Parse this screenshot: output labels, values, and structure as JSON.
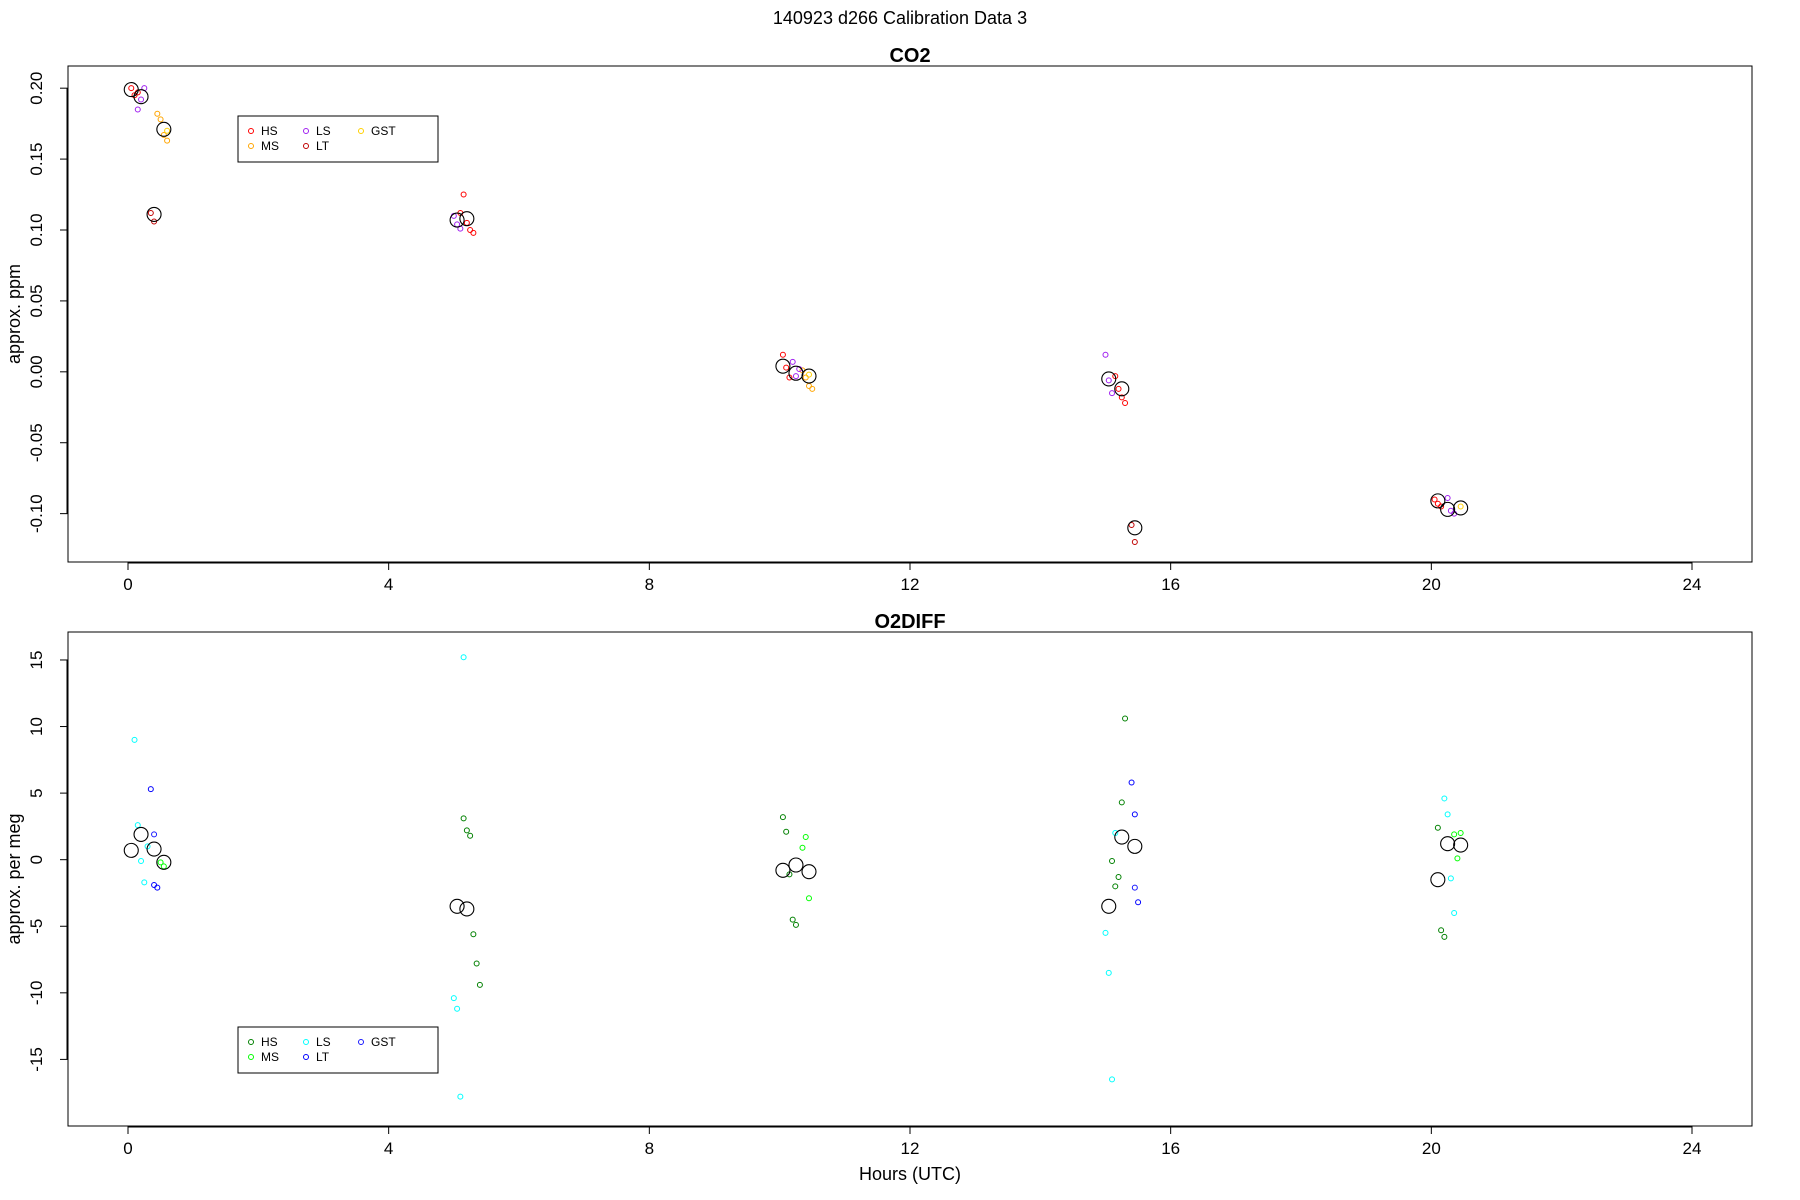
{
  "header": {
    "title": "140923   d266   Calibration Data 3"
  },
  "chart_data": [
    {
      "type": "scatter",
      "title": "CO2",
      "ylabel": "approx. ppm",
      "xlabel": "",
      "xlim": [
        0,
        24
      ],
      "ylim": [
        -0.12,
        0.21
      ],
      "xticks": [
        0,
        4,
        8,
        12,
        16,
        20,
        24
      ],
      "yticks": [
        -0.1,
        -0.05,
        0.0,
        0.05,
        0.1,
        0.15,
        0.2
      ],
      "ytick_labels": [
        "-0.10",
        "-0.05",
        "0.00",
        "0.05",
        "0.10",
        "0.15",
        "0.20"
      ],
      "legend": {
        "placement": "top-left",
        "entries": [
          "HS",
          "MS",
          "LS",
          "LT",
          "GST"
        ]
      },
      "series": [
        {
          "name": "HS",
          "color": "#ff0000",
          "x": [
            0.05,
            0.1,
            0.15,
            5.15,
            5.2,
            5.25,
            5.3,
            5.1,
            10.05,
            10.1,
            10.15,
            15.15,
            15.2,
            15.25,
            15.3,
            20.05,
            20.1,
            20.15
          ],
          "y": [
            0.2,
            0.195,
            0.197,
            0.125,
            0.105,
            0.1,
            0.098,
            0.112,
            0.012,
            0.003,
            -0.004,
            -0.003,
            -0.012,
            -0.018,
            -0.022,
            -0.09,
            -0.093,
            -0.095
          ]
        },
        {
          "name": "MS",
          "color": "#ffa500",
          "x": [
            0.45,
            0.5,
            0.55,
            0.6,
            10.35,
            10.4,
            10.45,
            10.5
          ],
          "y": [
            0.182,
            0.178,
            0.167,
            0.163,
            0.001,
            -0.004,
            -0.01,
            -0.012
          ]
        },
        {
          "name": "LS",
          "color": "#a020f0",
          "x": [
            0.15,
            0.2,
            0.25,
            5.0,
            5.05,
            5.1,
            10.2,
            10.25,
            10.3,
            15.0,
            15.05,
            15.1,
            20.25,
            20.3,
            20.35
          ],
          "y": [
            0.185,
            0.192,
            0.2,
            0.11,
            0.104,
            0.101,
            0.007,
            -0.003,
            0.002,
            0.012,
            -0.006,
            -0.015,
            -0.089,
            -0.098,
            -0.1
          ]
        },
        {
          "name": "LT",
          "color": "#c00000",
          "x": [
            0.35,
            0.4,
            15.4,
            15.45
          ],
          "y": [
            0.112,
            0.106,
            -0.108,
            -0.12
          ]
        },
        {
          "name": "GST",
          "color": "#ffd000",
          "x": [
            0.6,
            10.45,
            20.45
          ],
          "y": [
            0.17,
            -0.002,
            -0.095
          ]
        },
        {
          "name": "",
          "color": "#000000",
          "marker": "large",
          "x": [
            0.05,
            0.2,
            0.4,
            0.55,
            5.05,
            5.2,
            10.05,
            10.25,
            10.45,
            15.05,
            15.25,
            15.45,
            20.1,
            20.25,
            20.45
          ],
          "y": [
            0.199,
            0.194,
            0.111,
            0.171,
            0.107,
            0.108,
            0.004,
            -0.001,
            -0.003,
            -0.005,
            -0.012,
            -0.11,
            -0.091,
            -0.097,
            -0.096
          ]
        }
      ]
    },
    {
      "type": "scatter",
      "title": "O2DIFF",
      "ylabel": "approx. per meg",
      "xlabel": "Hours (UTC)",
      "xlim": [
        0,
        24
      ],
      "ylim": [
        -18.5,
        16.5
      ],
      "xticks": [
        0,
        4,
        8,
        12,
        16,
        20,
        24
      ],
      "yticks": [
        -15,
        -10,
        -5,
        0,
        5,
        10,
        15
      ],
      "ytick_labels": [
        "-15",
        "-10",
        "-5",
        "0",
        "5",
        "10",
        "15"
      ],
      "legend": {
        "placement": "bottom-left",
        "entries": [
          "HS",
          "MS",
          "LS",
          "LT",
          "GST"
        ]
      },
      "series": [
        {
          "name": "HS",
          "color": "#008000",
          "x": [
            5.15,
            5.2,
            5.25,
            5.3,
            5.35,
            5.4,
            10.05,
            10.1,
            10.15,
            10.2,
            10.25,
            15.1,
            15.15,
            15.2,
            15.25,
            15.3,
            20.1,
            20.15,
            20.2
          ],
          "y": [
            3.1,
            2.2,
            1.8,
            -5.6,
            -7.8,
            -9.4,
            3.2,
            2.1,
            -1.1,
            -4.5,
            -4.9,
            -0.1,
            -2.0,
            -1.3,
            4.3,
            10.6,
            2.4,
            -5.3,
            -5.8
          ]
        },
        {
          "name": "MS",
          "color": "#00ff00",
          "x": [
            0.5,
            0.55,
            10.35,
            10.4,
            10.45,
            20.35,
            20.4,
            20.45
          ],
          "y": [
            -0.2,
            -0.5,
            0.9,
            1.7,
            -2.9,
            1.9,
            0.1,
            2.0
          ]
        },
        {
          "name": "LS",
          "color": "#00ffff",
          "x": [
            0.1,
            0.15,
            0.2,
            0.25,
            0.3,
            5.0,
            5.05,
            5.1,
            5.15,
            15.0,
            15.05,
            15.1,
            15.15,
            20.2,
            20.25,
            20.3,
            20.35
          ],
          "y": [
            9.0,
            2.6,
            -0.1,
            -1.7,
            1.0,
            -10.4,
            -11.2,
            -17.8,
            15.2,
            -5.5,
            -8.5,
            -16.5,
            2.0,
            4.6,
            3.4,
            -1.4,
            -4.0
          ]
        },
        {
          "name": "LT",
          "color": "#0000ff",
          "x": [
            0.35,
            0.4,
            0.45,
            15.4,
            15.45,
            15.5
          ],
          "y": [
            5.3,
            -1.9,
            -2.1,
            5.8,
            3.4,
            -3.2
          ]
        },
        {
          "name": "GST",
          "color": "#1a1aff",
          "x": [
            0.4,
            15.45
          ],
          "y": [
            1.9,
            -2.1
          ]
        },
        {
          "name": "",
          "color": "#000000",
          "marker": "large",
          "x": [
            0.05,
            0.2,
            0.4,
            0.55,
            5.05,
            5.2,
            10.05,
            10.25,
            10.45,
            15.05,
            15.25,
            15.45,
            20.1,
            20.25,
            20.45
          ],
          "y": [
            0.7,
            1.9,
            0.8,
            -0.2,
            -3.5,
            -3.7,
            -0.8,
            -0.4,
            -0.9,
            -3.5,
            1.7,
            1.0,
            -1.5,
            1.2,
            1.1
          ]
        }
      ]
    }
  ]
}
